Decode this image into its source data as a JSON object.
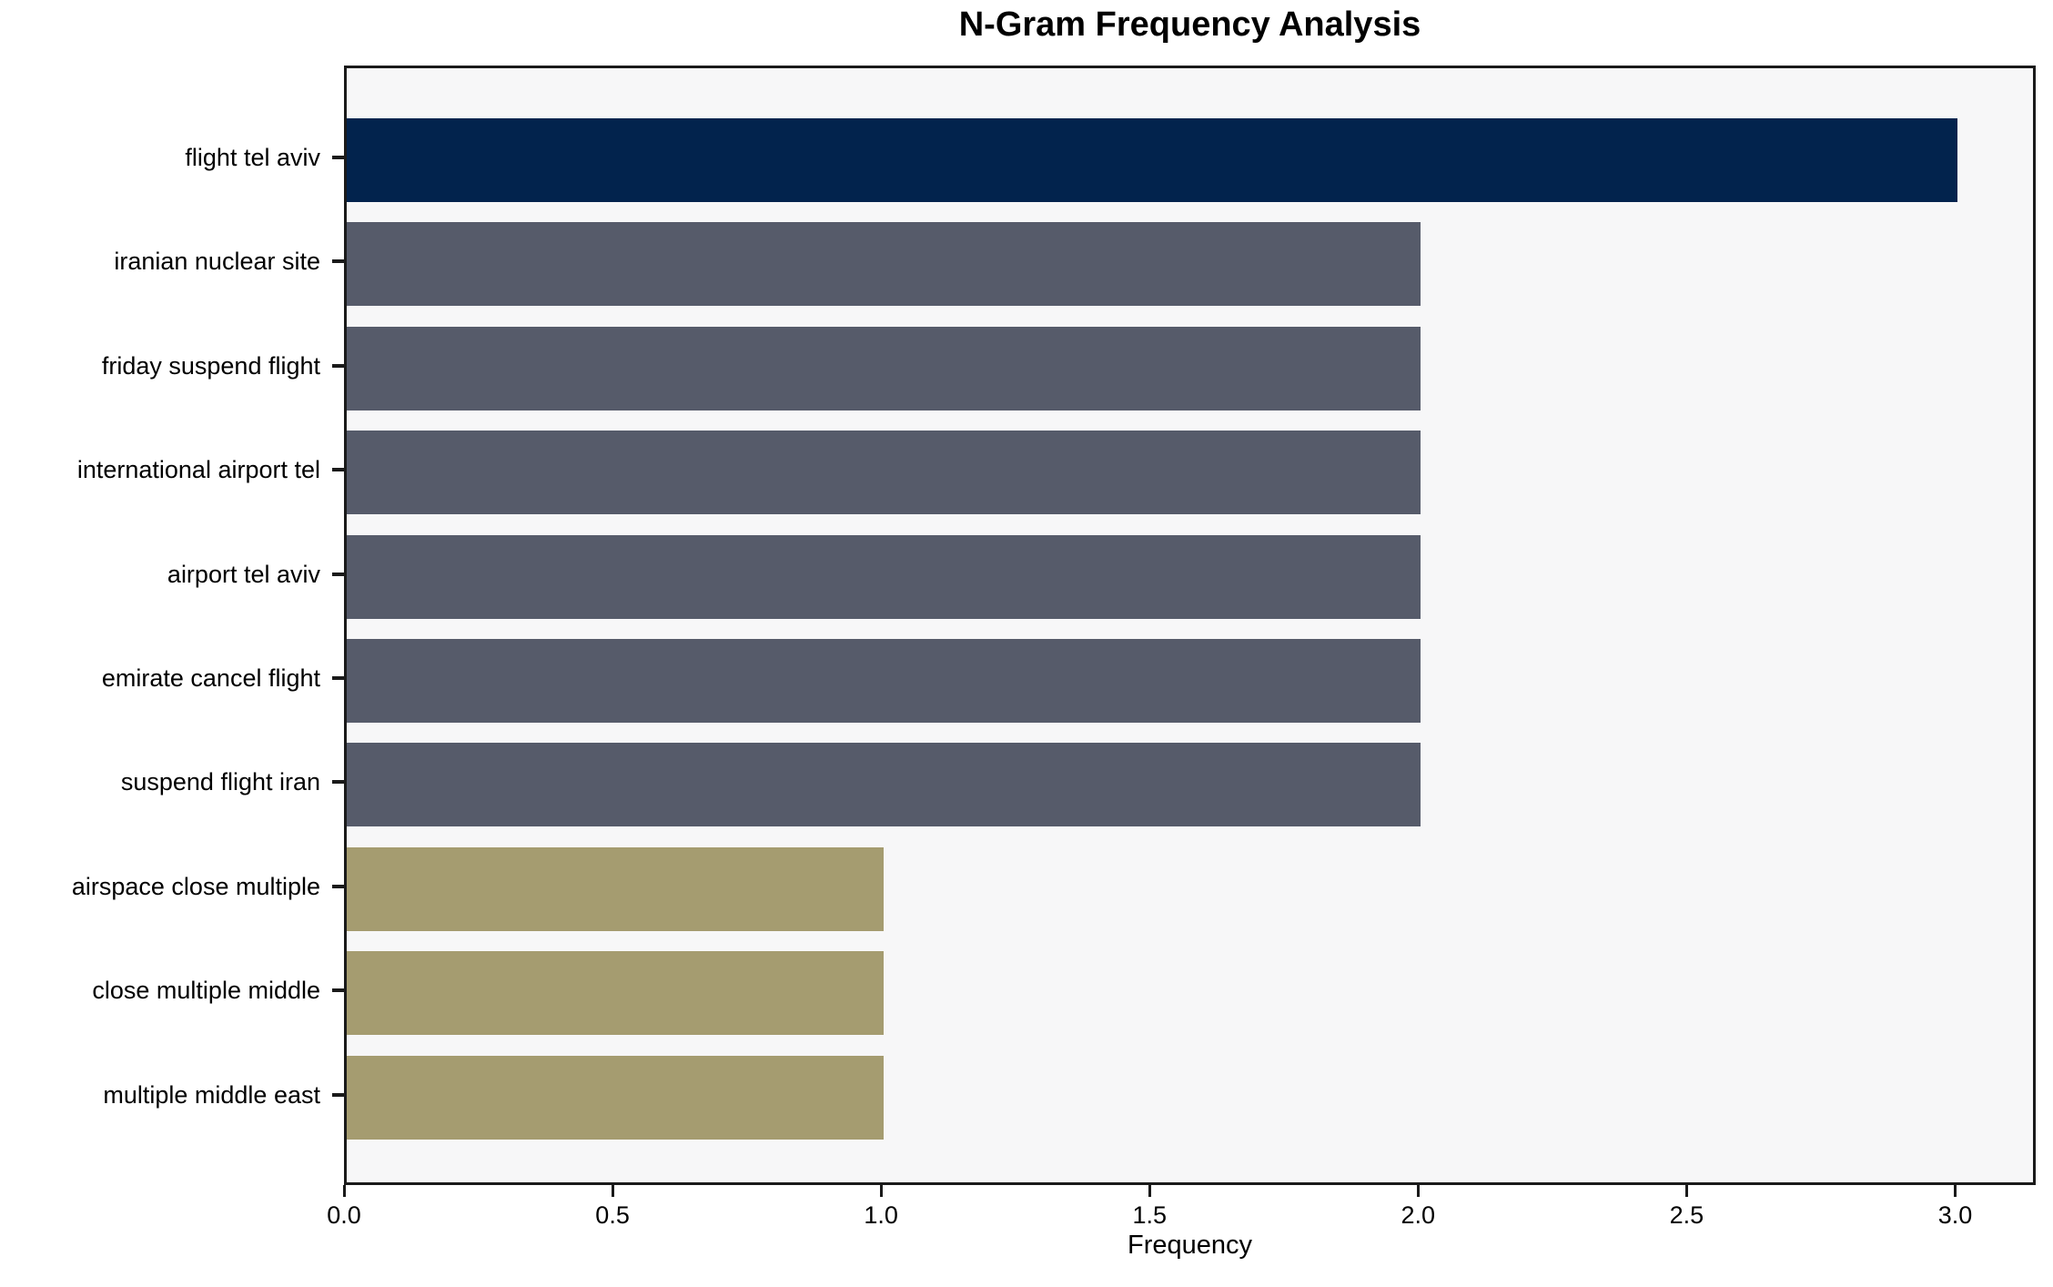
{
  "chart_data": {
    "type": "bar",
    "orientation": "horizontal",
    "title": "N-Gram Frequency Analysis",
    "xlabel": "Frequency",
    "ylabel": "",
    "categories": [
      "flight tel aviv",
      "iranian nuclear site",
      "friday suspend flight",
      "international airport tel",
      "airport tel aviv",
      "emirate cancel flight",
      "suspend flight iran",
      "airspace close multiple",
      "close multiple middle",
      "multiple middle east"
    ],
    "values": [
      3,
      2,
      2,
      2,
      2,
      2,
      2,
      1,
      1,
      1
    ],
    "bar_colors": [
      "#02234d",
      "#565b6a",
      "#565b6a",
      "#565b6a",
      "#565b6a",
      "#565b6a",
      "#565b6a",
      "#a59c70",
      "#a59c70",
      "#a59c70"
    ],
    "palette": {
      "navy": "#02234d",
      "slate_gray": "#565b6a",
      "khaki": "#a59c70",
      "plot_background": "#f7f7f8",
      "spine": "#1a1a1a"
    },
    "xticks": [
      0.0,
      0.5,
      1.0,
      1.5,
      2.0,
      2.5,
      3.0
    ],
    "xlim": [
      0,
      3.15
    ],
    "grid": false,
    "legend": null
  }
}
